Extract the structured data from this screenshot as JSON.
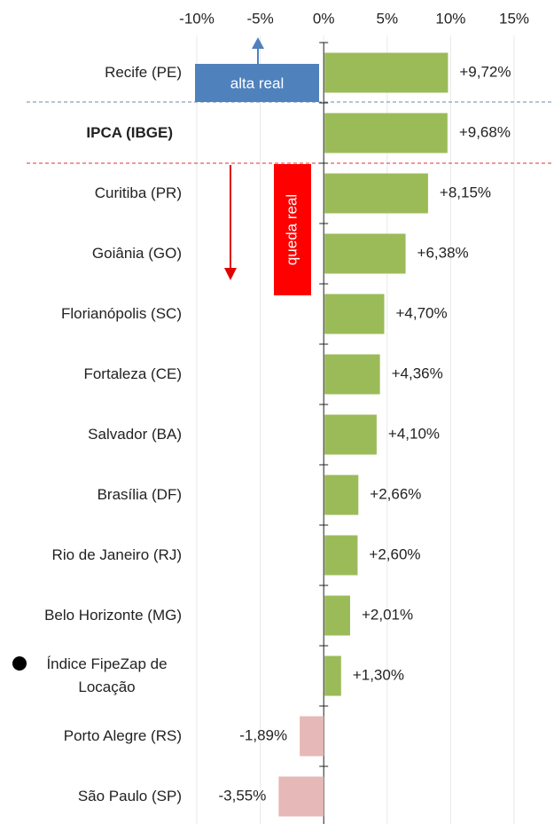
{
  "chart_data": {
    "type": "barh",
    "categories": [
      "Recife (PE)",
      "IPCA (IBGE)",
      "Curitiba (PR)",
      "Goiânia (GO)",
      "Florianópolis (SC)",
      "Fortaleza (CE)",
      "Salvador (BA)",
      "Brasília (DF)",
      "Rio de Janeiro (RJ)",
      "Belo Horizonte (MG)",
      "Índice FipeZap de Locação",
      "Porto Alegre (RS)",
      "São Paulo (SP)"
    ],
    "values": [
      9.72,
      9.68,
      8.15,
      6.38,
      4.7,
      4.36,
      4.1,
      2.66,
      2.6,
      2.01,
      1.3,
      -1.89,
      -3.55
    ],
    "value_labels": [
      "+9,72%",
      "+9,68%",
      "+8,15%",
      "+6,38%",
      "+4,70%",
      "+4,36%",
      "+4,10%",
      "+2,66%",
      "+2,60%",
      "+2,01%",
      "+1,30%",
      "-1,89%",
      "-3,55%"
    ],
    "colors": [
      "#9bbb59",
      "#9bbb59",
      "#9bbb59",
      "#9bbb59",
      "#9bbb59",
      "#9bbb59",
      "#9bbb59",
      "#9bbb59",
      "#9bbb59",
      "#9bbb59",
      "#9bbb59",
      "#e6b8b7",
      "#e6b8b7"
    ],
    "bold_index": 1,
    "xlim": [
      -10,
      15
    ],
    "xticks": [
      {
        "value": -10,
        "label": "-10%"
      },
      {
        "value": -5,
        "label": "-5%"
      },
      {
        "value": 0,
        "label": "0%"
      },
      {
        "value": 5,
        "label": "5%"
      },
      {
        "value": 10,
        "label": "10%"
      },
      {
        "value": 15,
        "label": "15%"
      }
    ],
    "grid": true,
    "annotations": [
      "alta real",
      "queda real"
    ]
  }
}
